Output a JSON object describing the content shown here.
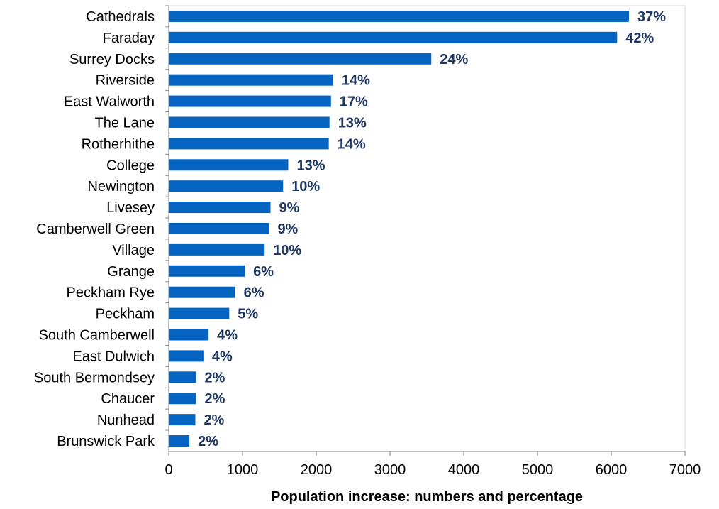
{
  "chart_data": {
    "type": "bar",
    "orientation": "horizontal",
    "title": "",
    "xlabel": "Population increase: numbers and percentage",
    "ylabel": "",
    "xlim": [
      0,
      7000
    ],
    "xticks": [
      "0",
      "1000",
      "2000",
      "3000",
      "4000",
      "5000",
      "6000",
      "7000"
    ],
    "grid": false,
    "legend": "none",
    "bar_color": "#0563c1",
    "label_color": "#1f3864",
    "categories": [
      "Cathedrals",
      "Faraday",
      "Surrey Docks",
      "Riverside",
      "East Walworth",
      "The Lane",
      "Rotherhithe",
      "College",
      "Newington",
      "Livesey",
      "Camberwell Green",
      "Village",
      "Grange",
      "Peckham Rye",
      "Peckham",
      "South Camberwell",
      "East Dulwich",
      "South Bermondsey",
      "Chaucer",
      "Nunhead",
      "Brunswick Park"
    ],
    "values": [
      6240,
      6080,
      3560,
      2230,
      2200,
      2180,
      2170,
      1620,
      1550,
      1380,
      1360,
      1300,
      1030,
      900,
      820,
      540,
      470,
      370,
      370,
      360,
      280
    ],
    "data_labels": [
      "37%",
      "42%",
      "24%",
      "14%",
      "17%",
      "13%",
      "14%",
      "13%",
      "10%",
      "9%",
      "9%",
      "10%",
      "6%",
      "6%",
      "5%",
      "4%",
      "4%",
      "2%",
      "2%",
      "2%",
      "2%"
    ]
  }
}
